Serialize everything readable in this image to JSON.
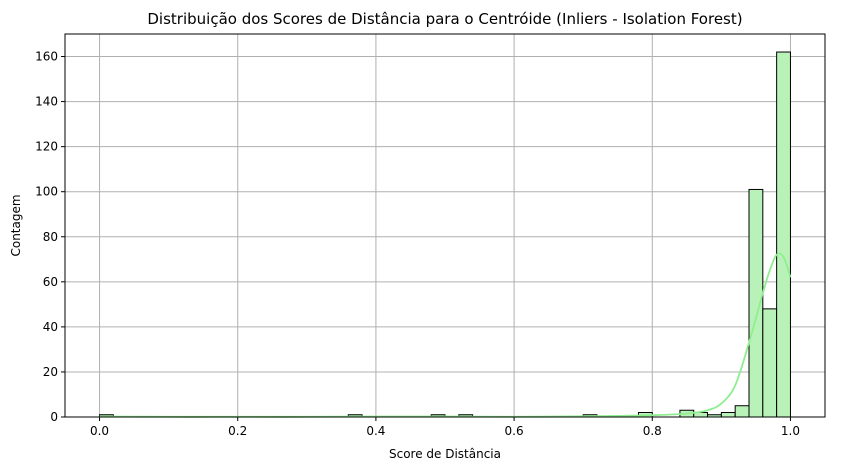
{
  "chart_data": {
    "type": "histogram",
    "title": "Distribuição dos Scores de Distância para o Centróide (Inliers - Isolation Forest)",
    "xlabel": "Score de Distância",
    "ylabel": "Contagem",
    "xlim": [
      -0.05,
      1.05
    ],
    "ylim": [
      0,
      170
    ],
    "xticks": [
      "0.0",
      "0.2",
      "0.4",
      "0.6",
      "0.8",
      "1.0"
    ],
    "yticks": [
      "0",
      "20",
      "40",
      "60",
      "80",
      "100",
      "120",
      "140",
      "160"
    ],
    "grid": true,
    "bin_width": 0.02,
    "bins": [
      {
        "start": 0.0,
        "count": 1
      },
      {
        "start": 0.36,
        "count": 1
      },
      {
        "start": 0.48,
        "count": 1
      },
      {
        "start": 0.52,
        "count": 1
      },
      {
        "start": 0.7,
        "count": 1
      },
      {
        "start": 0.78,
        "count": 2
      },
      {
        "start": 0.84,
        "count": 3
      },
      {
        "start": 0.86,
        "count": 2
      },
      {
        "start": 0.88,
        "count": 1
      },
      {
        "start": 0.9,
        "count": 2
      },
      {
        "start": 0.92,
        "count": 5
      },
      {
        "start": 0.94,
        "count": 101
      },
      {
        "start": 0.96,
        "count": 48
      },
      {
        "start": 0.98,
        "count": 162
      }
    ],
    "kde": {
      "x": [
        0.0,
        0.1,
        0.2,
        0.3,
        0.4,
        0.5,
        0.6,
        0.7,
        0.75,
        0.8,
        0.85,
        0.88,
        0.9,
        0.92,
        0.94,
        0.96,
        0.97,
        0.98,
        0.99,
        1.0
      ],
      "y": [
        0.2,
        0.1,
        0.1,
        0.1,
        0.2,
        0.2,
        0.1,
        0.3,
        0.5,
        0.8,
        1.5,
        3,
        6,
        14,
        33,
        55,
        65,
        72,
        71,
        62
      ]
    },
    "colors": {
      "bar_fill": "#b9f2b9",
      "bar_edge": "#000000",
      "kde_line": "#90ee90",
      "grid": "#b0b0b0"
    }
  }
}
